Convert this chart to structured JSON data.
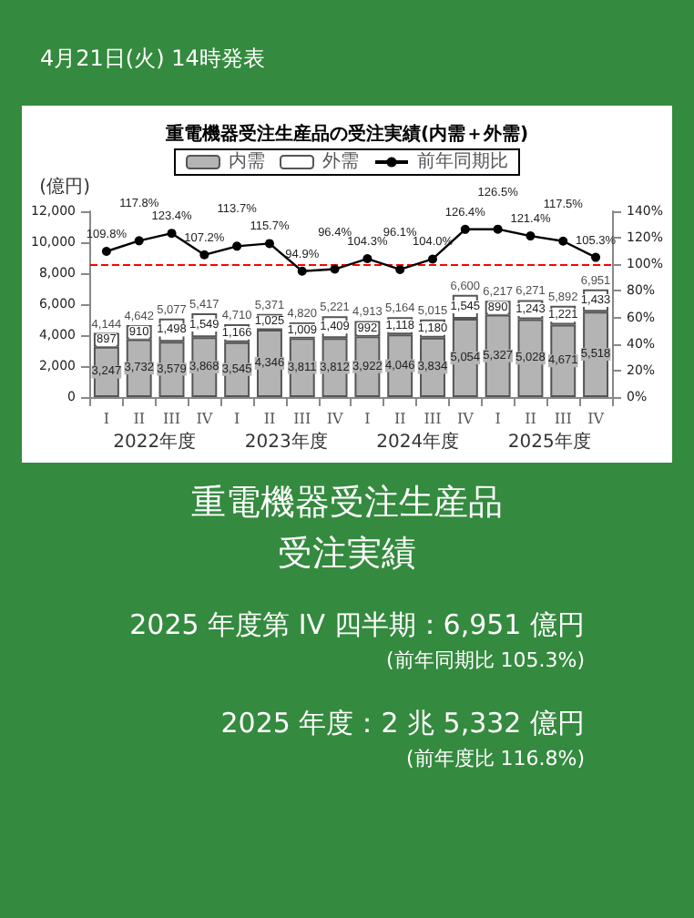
{
  "chart_data": {
    "type": "bar",
    "title": "重電機器受注生産品の受注実績(内需＋外需)",
    "ylabel": "(億円)",
    "categories": [
      "I",
      "II",
      "III",
      "IV",
      "I",
      "II",
      "III",
      "IV",
      "I",
      "II",
      "III",
      "IV",
      "I",
      "II",
      "III",
      "IV"
    ],
    "stacked": true,
    "series": [
      {
        "name": "内需",
        "color": "#b4b4b4",
        "values": [
          3247,
          3732,
          3579,
          3868,
          3545,
          4346,
          3811,
          3812,
          3922,
          4046,
          3834,
          5054,
          5327,
          5028,
          4671,
          5518
        ],
        "value_labels": [
          "3,247",
          "3,732",
          "3,579",
          "3,868",
          "3,545",
          "4,346",
          "3,811",
          "3,812",
          "3,922",
          "4,046",
          "3,834",
          "5,054",
          "5,327",
          "5,028",
          "4,671",
          "5,518"
        ]
      },
      {
        "name": "外需",
        "color": "#ffffff",
        "values": [
          897,
          910,
          1498,
          1549,
          1166,
          1025,
          1009,
          1409,
          992,
          1118,
          1180,
          1545,
          890,
          1243,
          1221,
          1433
        ],
        "value_labels": [
          "897",
          "910",
          "1,498",
          "1,549",
          "1,166",
          "1,025",
          "1,009",
          "1,409",
          "992",
          "1,118",
          "1,180",
          "1,545",
          "890",
          "1,243",
          "1,221",
          "1,433"
        ]
      },
      {
        "name": "前年同期比",
        "type": "line",
        "axis": "y2",
        "color": "#000000",
        "values": [
          109.8,
          117.8,
          123.4,
          107.2,
          113.7,
          115.7,
          94.9,
          96.4,
          104.3,
          96.1,
          104.0,
          126.4,
          126.5,
          121.4,
          117.5,
          105.3
        ],
        "value_labels": [
          "109.8%",
          "117.8%",
          "123.4%",
          "107.2%",
          "113.7%",
          "115.7%",
          "94.9%",
          "96.4%",
          "104.3%",
          "96.1%",
          "104.0%",
          "126.4%",
          "126.5%",
          "121.4%",
          "117.5%",
          "105.3%"
        ]
      }
    ],
    "totals": [
      "4,144",
      "4,642",
      "5,077",
      "5,417",
      "4,710",
      "5,371",
      "4,820",
      "5,221",
      "4,913",
      "5,164",
      "5,015",
      "6,600",
      "6,217",
      "6,271",
      "5,892",
      "6,951"
    ],
    "ylim": [
      0,
      12000
    ],
    "yticks": [
      {
        "value": 0,
        "label": "0"
      },
      {
        "value": 2000,
        "label": "2,000"
      },
      {
        "value": 4000,
        "label": "4,000"
      },
      {
        "value": 6000,
        "label": "6,000"
      },
      {
        "value": 8000,
        "label": "8,000"
      },
      {
        "value": 10000,
        "label": "10,000"
      },
      {
        "value": 12000,
        "label": "12,000"
      }
    ],
    "y2lim": [
      0,
      140
    ],
    "y2ticks": [
      {
        "value": 0,
        "label": "0%"
      },
      {
        "value": 20,
        "label": "20%"
      },
      {
        "value": 40,
        "label": "40%"
      },
      {
        "value": 60,
        "label": "60%"
      },
      {
        "value": 80,
        "label": "80%"
      },
      {
        "value": 100,
        "label": "100%"
      },
      {
        "value": 120,
        "label": "120%"
      },
      {
        "value": 140,
        "label": "140%"
      }
    ],
    "ref_lines": [
      {
        "axis": "y2",
        "value": 100,
        "color": "#ff0000",
        "line_style": "dashed"
      }
    ],
    "marker": "circle",
    "grid": false,
    "legend": "top",
    "annotations": [
      "4月21日(火) 14時発表",
      "2022年度",
      "2023年度",
      "2024年度",
      "2025年度",
      "重電機器受注生産品",
      "受注実績",
      "2025 年度第 IV 四半期：6,951 億円",
      "(前年同期比 105.3%)",
      "2025 年度：2 兆 5,332 億円",
      "(前年度比 116.8%)"
    ]
  }
}
